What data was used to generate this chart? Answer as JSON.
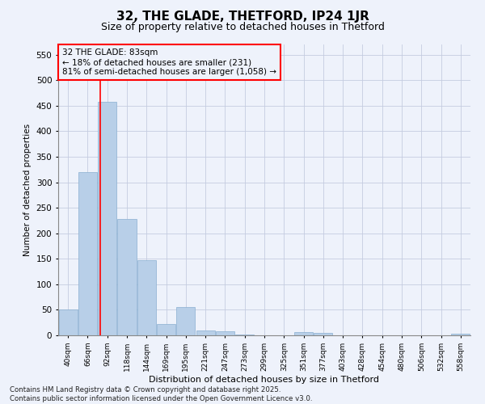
{
  "title": "32, THE GLADE, THETFORD, IP24 1JR",
  "subtitle": "Size of property relative to detached houses in Thetford",
  "xlabel": "Distribution of detached houses by size in Thetford",
  "ylabel": "Number of detached properties",
  "categories": [
    "40sqm",
    "66sqm",
    "92sqm",
    "118sqm",
    "144sqm",
    "169sqm",
    "195sqm",
    "221sqm",
    "247sqm",
    "273sqm",
    "299sqm",
    "325sqm",
    "351sqm",
    "377sqm",
    "403sqm",
    "428sqm",
    "454sqm",
    "480sqm",
    "506sqm",
    "532sqm",
    "558sqm"
  ],
  "values": [
    50,
    320,
    458,
    228,
    148,
    22,
    55,
    10,
    8,
    1,
    0,
    0,
    6,
    5,
    0,
    0,
    0,
    0,
    0,
    0,
    3
  ],
  "bar_color": "#b8cfe8",
  "bar_edge_color": "#8aafd0",
  "vline_x": 1.65,
  "vline_color": "red",
  "annotation_text": "32 THE GLADE: 83sqm\n← 18% of detached houses are smaller (231)\n81% of semi-detached houses are larger (1,058) →",
  "annotation_box_color": "red",
  "ylim": [
    0,
    570
  ],
  "yticks": [
    0,
    50,
    100,
    150,
    200,
    250,
    300,
    350,
    400,
    450,
    500,
    550
  ],
  "footer": "Contains HM Land Registry data © Crown copyright and database right 2025.\nContains public sector information licensed under the Open Government Licence v3.0.",
  "bg_color": "#eef2fb",
  "grid_color": "#c5cce0"
}
